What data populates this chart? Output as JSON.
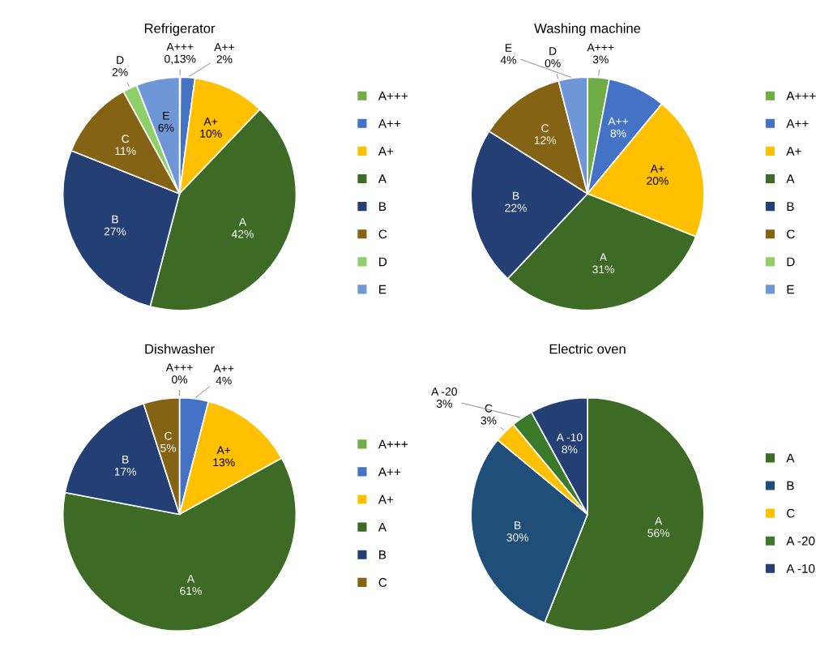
{
  "chart_data": [
    {
      "type": "pie",
      "title": "Refrigerator",
      "categories": [
        "A+++",
        "A++",
        "A+",
        "A",
        "B",
        "C",
        "D",
        "E"
      ],
      "values": [
        0.13,
        2,
        10,
        42,
        27,
        11,
        2,
        6
      ],
      "value_labels": [
        "0,13%",
        "2%",
        "10%",
        "42%",
        "27%",
        "11%",
        "2%",
        "6%"
      ],
      "colors": [
        "#70ad47",
        "#4472c4",
        "#ffc000",
        "#3d6b25",
        "#243f73",
        "#846414",
        "#8fcf6a",
        "#6f97d8"
      ],
      "legend": "right"
    },
    {
      "type": "pie",
      "title": "Washing machine",
      "categories": [
        "A+++",
        "A++",
        "A+",
        "A",
        "B",
        "C",
        "D",
        "E"
      ],
      "values": [
        3,
        8,
        20,
        31,
        22,
        12,
        0,
        4
      ],
      "value_labels": [
        "3%",
        "8%",
        "20%",
        "31%",
        "22%",
        "12%",
        "0%",
        "4%"
      ],
      "colors": [
        "#70ad47",
        "#4472c4",
        "#ffc000",
        "#3d6b25",
        "#243f73",
        "#846414",
        "#8fcf6a",
        "#6f97d8"
      ],
      "legend": "right"
    },
    {
      "type": "pie",
      "title": "Dishwasher",
      "categories": [
        "A+++",
        "A++",
        "A+",
        "A",
        "B",
        "C"
      ],
      "values": [
        0,
        4,
        13,
        61,
        17,
        5
      ],
      "value_labels": [
        "0%",
        "4%",
        "13%",
        "61%",
        "17%",
        "5%"
      ],
      "colors": [
        "#70ad47",
        "#4472c4",
        "#ffc000",
        "#3d6b25",
        "#243f73",
        "#846414"
      ],
      "legend": "right"
    },
    {
      "type": "pie",
      "title": "Electric oven",
      "categories": [
        "A",
        "B",
        "C",
        "A -20",
        "A -10"
      ],
      "values": [
        56,
        30,
        3,
        3,
        8
      ],
      "value_labels": [
        "56%",
        "30%",
        "3%",
        "3%",
        "8%"
      ],
      "colors": [
        "#3d6b25",
        "#1f4e79",
        "#ffc000",
        "#3b7a2a",
        "#243f73"
      ],
      "legend": "right"
    }
  ]
}
